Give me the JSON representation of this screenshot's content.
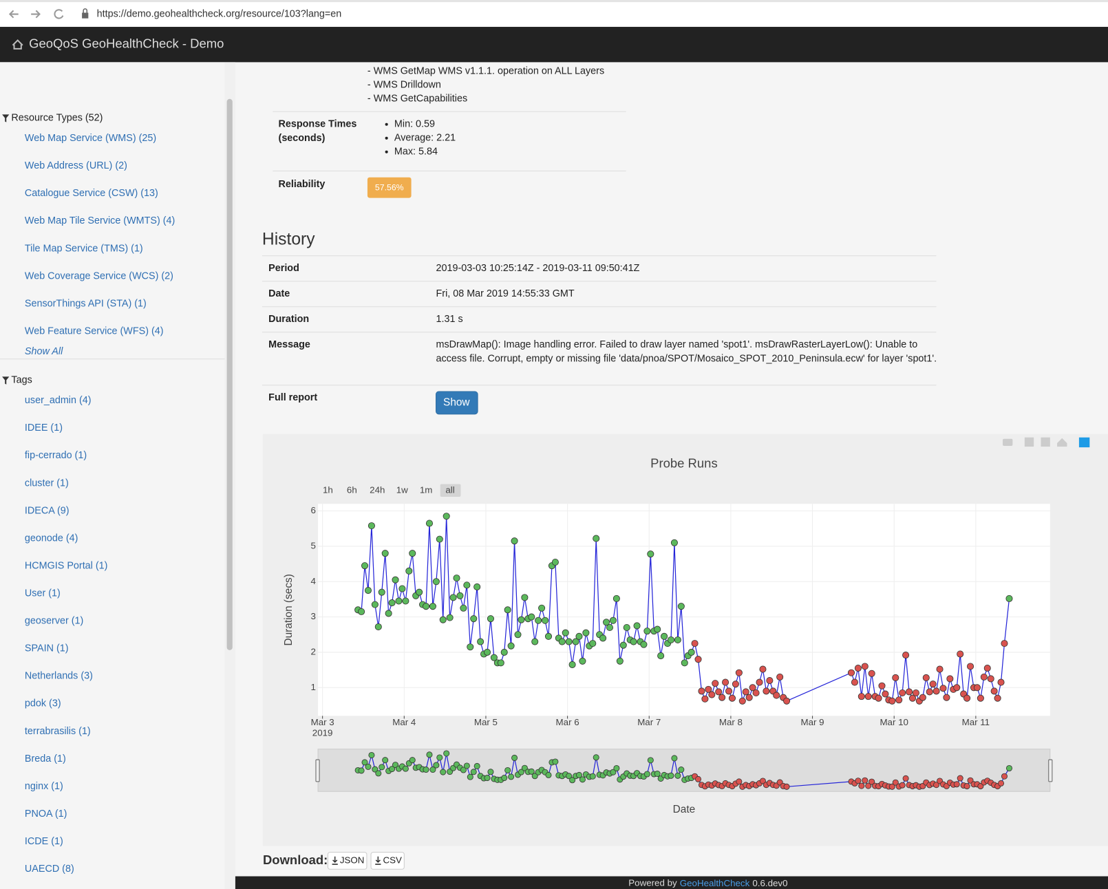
{
  "browser": {
    "url": "https://demo.geohealthcheck.org/resource/103?lang=en"
  },
  "navbar": {
    "title": "GeoQoS GeoHealthCheck - Demo"
  },
  "sidebar": {
    "resource_types": {
      "heading": "Resource Types (52)",
      "items": [
        "Web Map Service (WMS) (25)",
        "Web Address (URL) (2)",
        "Catalogue Service (CSW) (13)",
        "Web Map Tile Service (WMTS) (4)",
        "Tile Map Service (TMS) (1)",
        "Web Coverage Service (WCS) (2)",
        "SensorThings API (STA) (1)",
        "Web Feature Service (WFS) (4)"
      ],
      "show_all": "Show All"
    },
    "tags": {
      "heading": "Tags",
      "items": [
        "user_admin (4)",
        "IDEE (1)",
        "fip-cerrado (1)",
        "cluster (1)",
        "IDECA (9)",
        "geonode (4)",
        "HCMGIS Portal (1)",
        "User (1)",
        "geoserver (1)",
        "SPAIN (1)",
        "Netherlands (3)",
        "pdok (3)",
        "terrabrasilis (1)",
        "Breda (1)",
        "nginx (1)",
        "PNOA (1)",
        "ICDE (1)",
        "UAECD (8)"
      ]
    }
  },
  "details": {
    "probe_lines": [
      "- WMS GetMap WMS v1.1.1. operation on ALL Layers",
      "- WMS Drilldown",
      "- WMS GetCapabilities"
    ],
    "response_times": {
      "label": [
        "Response Times",
        "(seconds)"
      ],
      "items": [
        "Min: 0.59",
        "Average: 2.21",
        "Max: 5.84"
      ]
    },
    "reliability": {
      "label": "Reliability",
      "value": "57.56%"
    }
  },
  "history": {
    "title": "History",
    "rows": [
      [
        "Period",
        "2019-03-03 10:25:14Z - 2019-03-11 09:50:41Z"
      ],
      [
        "Date",
        "Fri, 08 Mar 2019 14:55:33 GMT"
      ],
      [
        "Duration",
        "1.31 s"
      ],
      [
        "Message",
        [
          "msDrawMap(): Image handling error. Failed to draw layer named 'spot1'. msDrawRasterLayerLow(): Unable to",
          "access file. Corrupt, empty or missing file 'data/pnoa/SPOT/Mosaico_SPOT_2010_Peninsula.ecw' for layer 'spot1'."
        ]
      ]
    ],
    "full_report": {
      "label": "Full report",
      "button": "Show"
    }
  },
  "chart_data": {
    "type": "line",
    "title": "Probe Runs",
    "x_label": "Date",
    "y_label": "Duration (secs)",
    "range_buttons": [
      "1h",
      "6h",
      "24h",
      "1w",
      "1m",
      "all"
    ],
    "active_range": 5,
    "xlim": [
      "2019-03-02T22:40",
      "2019-03-11T21:50"
    ],
    "xticks": [
      {
        "value": "2019-03-03T00:00",
        "label": "Mar 3"
      },
      {
        "value": "2019-03-04T00:00",
        "label": "Mar 4"
      },
      {
        "value": "2019-03-05T00:00",
        "label": "Mar 5"
      },
      {
        "value": "2019-03-06T00:00",
        "label": "Mar 6"
      },
      {
        "value": "2019-03-07T00:00",
        "label": "Mar 7"
      },
      {
        "value": "2019-03-08T00:00",
        "label": "Mar 8"
      },
      {
        "value": "2019-03-09T00:00",
        "label": "Mar 9"
      },
      {
        "value": "2019-03-10T00:00",
        "label": "Mar 10"
      },
      {
        "value": "2019-03-11T00:00",
        "label": "Mar 11"
      }
    ],
    "x_year_label": "2019",
    "ylim": [
      0.2,
      6.2
    ],
    "yticks": [
      1,
      2,
      3,
      4,
      5,
      6
    ],
    "grid": true,
    "line_color": "#2424d8",
    "rangeslider": true,
    "series": [
      {
        "color": "#5cb85c",
        "x": [
          "2019-03-03T10:25",
          "2019-03-03T11:25",
          "2019-03-03T12:25",
          "2019-03-03T13:25",
          "2019-03-03T14:25",
          "2019-03-03T15:25",
          "2019-03-03T16:25",
          "2019-03-03T17:25",
          "2019-03-03T18:25",
          "2019-03-03T19:25",
          "2019-03-03T20:25",
          "2019-03-03T21:25",
          "2019-03-03T22:25",
          "2019-03-03T23:25",
          "2019-03-04T00:25",
          "2019-03-04T01:25",
          "2019-03-04T02:25",
          "2019-03-04T03:25",
          "2019-03-04T04:25",
          "2019-03-04T05:25",
          "2019-03-04T06:25",
          "2019-03-04T07:25",
          "2019-03-04T08:25",
          "2019-03-04T09:25",
          "2019-03-04T10:25",
          "2019-03-04T11:25",
          "2019-03-04T12:25",
          "2019-03-04T13:25",
          "2019-03-04T14:25",
          "2019-03-04T15:25",
          "2019-03-04T16:25",
          "2019-03-04T17:25",
          "2019-03-04T18:25",
          "2019-03-04T19:25",
          "2019-03-04T20:25",
          "2019-03-04T21:25",
          "2019-03-04T22:25",
          "2019-03-04T23:25",
          "2019-03-05T00:25",
          "2019-03-05T01:25",
          "2019-03-05T02:25",
          "2019-03-05T03:25",
          "2019-03-05T04:25",
          "2019-03-05T05:25",
          "2019-03-05T06:25",
          "2019-03-05T07:25",
          "2019-03-05T08:25",
          "2019-03-05T09:25",
          "2019-03-05T10:25",
          "2019-03-05T11:25",
          "2019-03-05T12:25",
          "2019-03-05T13:25",
          "2019-03-05T14:25",
          "2019-03-05T15:25",
          "2019-03-05T16:25",
          "2019-03-05T17:25",
          "2019-03-05T18:25",
          "2019-03-05T19:25",
          "2019-03-05T20:25",
          "2019-03-05T21:25",
          "2019-03-05T22:25",
          "2019-03-05T23:25",
          "2019-03-06T00:25",
          "2019-03-06T01:25",
          "2019-03-06T02:25",
          "2019-03-06T03:25",
          "2019-03-06T04:25",
          "2019-03-06T05:25",
          "2019-03-06T06:25",
          "2019-03-06T07:25",
          "2019-03-06T08:25",
          "2019-03-06T09:25",
          "2019-03-06T10:25",
          "2019-03-06T11:25",
          "2019-03-06T12:25",
          "2019-03-06T13:25",
          "2019-03-06T14:25",
          "2019-03-06T15:25",
          "2019-03-06T16:25",
          "2019-03-06T17:25",
          "2019-03-06T18:25",
          "2019-03-06T19:25",
          "2019-03-06T20:25",
          "2019-03-06T21:25",
          "2019-03-06T22:25",
          "2019-03-06T23:25",
          "2019-03-07T00:25",
          "2019-03-07T01:25",
          "2019-03-07T02:25",
          "2019-03-07T03:25",
          "2019-03-07T04:25",
          "2019-03-07T05:25",
          "2019-03-07T06:25",
          "2019-03-07T07:25",
          "2019-03-07T08:25",
          "2019-03-07T09:25",
          "2019-03-07T10:25",
          "2019-03-07T11:25",
          "2019-03-07T12:25"
        ],
        "values": [
          3.2,
          3.15,
          4.45,
          3.75,
          5.58,
          3.35,
          2.72,
          3.7,
          4.8,
          3.1,
          3.4,
          4.05,
          3.45,
          3.8,
          3.45,
          4.3,
          4.8,
          3.6,
          3.7,
          3.35,
          3.3,
          5.65,
          3.3,
          4.0,
          5.2,
          2.92,
          5.85,
          2.98,
          3.55,
          4.1,
          3.6,
          3.25,
          3.9,
          2.15,
          2.95,
          3.85,
          2.3,
          1.95,
          2.0,
          2.95,
          1.85,
          1.7,
          1.7,
          2.0,
          3.2,
          2.18,
          5.15,
          2.5,
          2.92,
          3.55,
          2.95,
          3.0,
          2.3,
          2.9,
          3.25,
          2.9,
          2.45,
          4.45,
          4.55,
          2.4,
          2.3,
          2.55,
          2.3,
          1.65,
          2.3,
          2.45,
          1.75,
          2.55,
          2.18,
          2.25,
          5.22,
          2.5,
          2.4,
          2.85,
          2.7,
          2.9,
          3.52,
          1.75,
          2.2,
          2.7,
          2.35,
          2.3,
          2.75,
          2.3,
          2.22,
          2.6,
          4.78,
          2.6,
          2.65,
          1.9,
          2.45,
          2.25,
          2.35,
          5.1,
          2.35,
          3.3,
          1.7,
          1.9,
          2.0
        ]
      },
      {
        "color": "#d9534f",
        "x": [
          "2019-03-07T13:25",
          "2019-03-07T14:25",
          "2019-03-07T15:25",
          "2019-03-07T16:25",
          "2019-03-07T17:25",
          "2019-03-07T18:25",
          "2019-03-07T19:25",
          "2019-03-07T20:25",
          "2019-03-07T21:25",
          "2019-03-07T22:25",
          "2019-03-07T23:25",
          "2019-03-08T00:25",
          "2019-03-08T01:25",
          "2019-03-08T02:25",
          "2019-03-08T03:25",
          "2019-03-08T04:25",
          "2019-03-08T05:25",
          "2019-03-08T06:25",
          "2019-03-08T07:25",
          "2019-03-08T08:25",
          "2019-03-08T09:25",
          "2019-03-08T10:25",
          "2019-03-08T11:25",
          "2019-03-08T12:25",
          "2019-03-08T13:25",
          "2019-03-08T14:25",
          "2019-03-08T15:25",
          "2019-03-08T16:25",
          "2019-03-09T11:25",
          "2019-03-09T12:25",
          "2019-03-09T13:25",
          "2019-03-09T14:25",
          "2019-03-09T15:25",
          "2019-03-09T16:25",
          "2019-03-09T17:25",
          "2019-03-09T18:25",
          "2019-03-09T19:25",
          "2019-03-09T20:25",
          "2019-03-09T21:25",
          "2019-03-09T22:25",
          "2019-03-09T23:25",
          "2019-03-10T00:25",
          "2019-03-10T01:25",
          "2019-03-10T02:25",
          "2019-03-10T03:25",
          "2019-03-10T04:25",
          "2019-03-10T05:25",
          "2019-03-10T06:25",
          "2019-03-10T07:25",
          "2019-03-10T08:25",
          "2019-03-10T09:25",
          "2019-03-10T10:25",
          "2019-03-10T11:25",
          "2019-03-10T12:25",
          "2019-03-10T13:25",
          "2019-03-10T14:25",
          "2019-03-10T15:25",
          "2019-03-10T16:25",
          "2019-03-10T17:25",
          "2019-03-10T18:25",
          "2019-03-10T19:25",
          "2019-03-10T20:25",
          "2019-03-10T21:25",
          "2019-03-10T22:25",
          "2019-03-10T23:25",
          "2019-03-11T00:25",
          "2019-03-11T01:25",
          "2019-03-11T02:25",
          "2019-03-11T03:25",
          "2019-03-11T04:25",
          "2019-03-11T05:25",
          "2019-03-11T06:25",
          "2019-03-11T07:25",
          "2019-03-11T08:25"
        ],
        "values": [
          2.25,
          1.8,
          0.9,
          0.68,
          0.95,
          0.8,
          1.12,
          0.88,
          0.72,
          1.15,
          0.9,
          0.7,
          1.1,
          1.42,
          0.62,
          0.88,
          0.72,
          1.0,
          0.85,
          1.15,
          1.52,
          0.9,
          1.2,
          0.9,
          0.78,
          1.3,
          0.72,
          0.62,
          1.42,
          1.15,
          1.55,
          0.75,
          1.6,
          0.75,
          1.4,
          0.75,
          0.7,
          1.05,
          0.82,
          0.65,
          0.62,
          1.28,
          0.65,
          0.85,
          1.92,
          0.88,
          0.7,
          0.85,
          0.62,
          0.72,
          1.28,
          0.88,
          1.1,
          0.9,
          1.52,
          0.98,
          0.72,
          1.25,
          0.95,
          1.0,
          1.95,
          0.82,
          0.7,
          1.6,
          1.0,
          1.0,
          0.7,
          1.3,
          1.55,
          1.25,
          0.9,
          0.7,
          1.15,
          2.25
        ]
      },
      {
        "color": "#5cb85c",
        "x": [
          "2019-03-11T09:50"
        ],
        "values": [
          3.52
        ]
      }
    ]
  },
  "download": {
    "label": "Download:",
    "buttons": [
      "JSON",
      "CSV"
    ]
  },
  "footer": {
    "prefix": "Powered by",
    "link": "GeoHealthCheck",
    "version": "0.6.dev0"
  }
}
